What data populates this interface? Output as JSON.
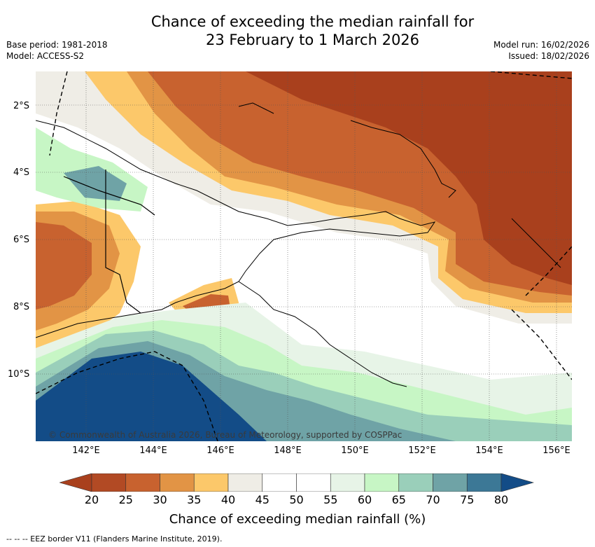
{
  "title_line1": "Chance of exceeding the median rainfall for",
  "title_line2": "23 February to 1 March 2026",
  "base_period": "Base period: 1981-2018",
  "model": "Model: ACCESS-S2",
  "model_run": "Model run: 16/02/2026",
  "issued": "Issued: 18/02/2026",
  "copyright": "© Commonwealth of Australia 2026, Bureau of Meteorology, supported by COSPPac",
  "lat_labels": [
    "2°S",
    "4°S",
    "6°S",
    "8°S",
    "10°S"
  ],
  "lon_labels": [
    "142°E",
    "144°E",
    "146°E",
    "148°E",
    "150°E",
    "152°E",
    "154°E",
    "156°E"
  ],
  "colorbar": {
    "ticks": [
      "20",
      "25",
      "30",
      "35",
      "40",
      "45",
      "50",
      "55",
      "60",
      "65",
      "70",
      "75",
      "80"
    ],
    "colors": [
      "#a9401d",
      "#b24a24",
      "#c8622f",
      "#e29445",
      "#fcc86a",
      "#efede6",
      "#ffffff",
      "#ffffff",
      "#e7f4e7",
      "#c7f6c5",
      "#9acfba",
      "#6fa3a6",
      "#3c7896",
      "#134c87"
    ],
    "label": "Chance of exceeding median rainfall (%)"
  },
  "footer": "-- -- -- EEZ border V11 (Flanders Marine Institute, 2019)."
}
